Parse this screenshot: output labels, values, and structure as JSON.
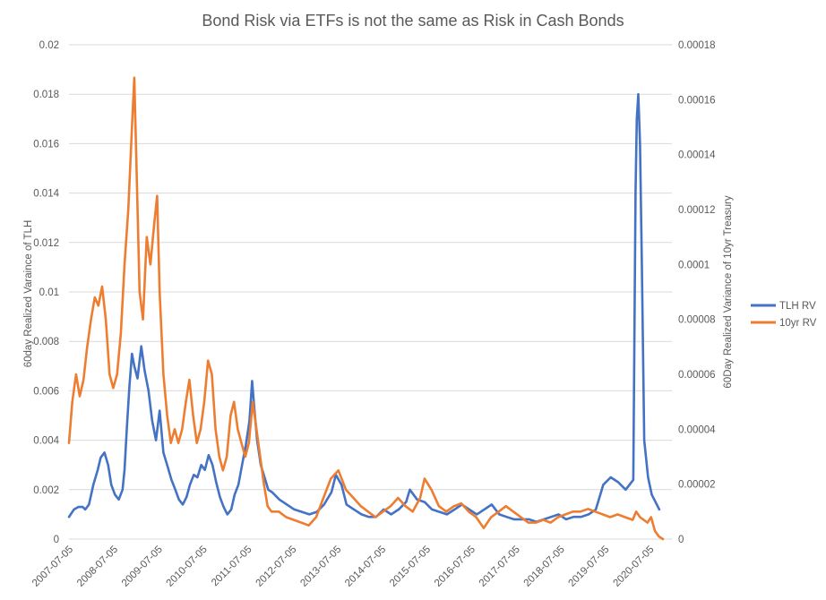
{
  "chart_data": {
    "type": "line",
    "title": "Bond Risk via ETFs is not the same as Risk in Cash Bonds",
    "xlabel": "",
    "y_left_label": "60day Realized Varaince of TLH",
    "y_right_label": "60Day Realized Variance of 10yr Treasury",
    "y_left_ticks": [
      "0",
      "0.002",
      "0.004",
      "0.006",
      "0.008",
      "0.01",
      "0.012",
      "0.014",
      "0.016",
      "0.018",
      "0.02"
    ],
    "y_right_ticks": [
      "0",
      "0.00002",
      "0.00004",
      "0.00006",
      "0.00008",
      "0.0001",
      "0.00012",
      "0.00014",
      "0.00016",
      "0.00018"
    ],
    "y_left_lim": [
      0,
      0.02
    ],
    "y_right_lim": [
      0,
      0.00018
    ],
    "x_ticks": [
      "2007-07-05",
      "2008-07-05",
      "2009-07-05",
      "2010-07-05",
      "2011-07-05",
      "2012-07-05",
      "2013-07-05",
      "2014-07-05",
      "2015-07-05",
      "2016-07-05",
      "2017-07-05",
      "2018-07-05",
      "2019-07-05",
      "2020-07-05"
    ],
    "x_lim": [
      "2007-07-05",
      "2021-01-01"
    ],
    "grid": true,
    "legend_position": "right",
    "series": [
      {
        "name": "TLH RV",
        "axis": "left",
        "color": "#4472c4",
        "x": [
          "2007-07-05",
          "2007-08-15",
          "2007-09-20",
          "2007-10-25",
          "2007-11-15",
          "2007-12-15",
          "2008-01-20",
          "2008-02-25",
          "2008-03-20",
          "2008-04-20",
          "2008-05-20",
          "2008-06-15",
          "2008-07-15",
          "2008-08-15",
          "2008-09-15",
          "2008-10-01",
          "2008-10-20",
          "2008-11-10",
          "2008-12-01",
          "2008-12-20",
          "2009-01-15",
          "2009-02-15",
          "2009-03-15",
          "2009-04-15",
          "2009-05-15",
          "2009-06-15",
          "2009-07-15",
          "2009-08-15",
          "2009-09-15",
          "2009-10-20",
          "2009-11-20",
          "2009-12-20",
          "2010-01-20",
          "2010-02-20",
          "2010-03-20",
          "2010-04-20",
          "2010-05-20",
          "2010-06-20",
          "2010-07-20",
          "2010-08-20",
          "2010-09-20",
          "2010-10-20",
          "2010-11-20",
          "2010-12-20",
          "2011-01-20",
          "2011-02-20",
          "2011-03-20",
          "2011-04-20",
          "2011-05-20",
          "2011-06-20",
          "2011-07-20",
          "2011-08-10",
          "2011-08-25",
          "2011-09-20",
          "2011-10-20",
          "2011-11-20",
          "2011-12-20",
          "2012-01-20",
          "2012-03-20",
          "2012-05-20",
          "2012-07-20",
          "2012-09-20",
          "2012-11-20",
          "2013-01-20",
          "2013-03-20",
          "2013-05-20",
          "2013-06-25",
          "2013-08-10",
          "2013-09-20",
          "2013-11-20",
          "2014-01-20",
          "2014-03-20",
          "2014-05-20",
          "2014-07-20",
          "2014-09-20",
          "2014-11-20",
          "2015-01-20",
          "2015-02-20",
          "2015-04-20",
          "2015-06-20",
          "2015-08-20",
          "2015-10-20",
          "2015-12-20",
          "2016-02-20",
          "2016-04-20",
          "2016-06-20",
          "2016-08-20",
          "2016-10-20",
          "2016-12-20",
          "2017-02-20",
          "2017-04-20",
          "2017-06-20",
          "2017-08-20",
          "2017-10-20",
          "2017-12-20",
          "2018-02-20",
          "2018-04-20",
          "2018-06-20",
          "2018-08-20",
          "2018-10-20",
          "2018-12-20",
          "2019-02-20",
          "2019-04-20",
          "2019-06-20",
          "2019-08-20",
          "2019-10-20",
          "2019-12-20",
          "2020-02-20",
          "2020-03-10",
          "2020-03-20",
          "2020-04-01",
          "2020-04-15",
          "2020-05-01",
          "2020-05-20",
          "2020-06-20",
          "2020-07-20",
          "2020-08-20",
          "2020-09-20"
        ],
        "y": [
          0.0009,
          0.0012,
          0.0013,
          0.0013,
          0.0012,
          0.0014,
          0.0022,
          0.0028,
          0.0033,
          0.0035,
          0.003,
          0.0022,
          0.0018,
          0.0016,
          0.002,
          0.0028,
          0.0045,
          0.0062,
          0.0075,
          0.007,
          0.0065,
          0.0078,
          0.0068,
          0.006,
          0.0048,
          0.004,
          0.0052,
          0.0035,
          0.003,
          0.0024,
          0.002,
          0.0016,
          0.0014,
          0.0017,
          0.0022,
          0.0026,
          0.0025,
          0.003,
          0.0028,
          0.0034,
          0.003,
          0.0023,
          0.0017,
          0.0013,
          0.001,
          0.0012,
          0.0018,
          0.0022,
          0.003,
          0.0038,
          0.0048,
          0.0064,
          0.0055,
          0.004,
          0.003,
          0.0025,
          0.002,
          0.0019,
          0.0016,
          0.0014,
          0.0012,
          0.0011,
          0.001,
          0.0011,
          0.0014,
          0.0019,
          0.0026,
          0.0022,
          0.0014,
          0.0012,
          0.001,
          0.0009,
          0.0009,
          0.0012,
          0.001,
          0.0012,
          0.0015,
          0.002,
          0.0016,
          0.0015,
          0.0012,
          0.0011,
          0.001,
          0.0012,
          0.0014,
          0.0012,
          0.001,
          0.0012,
          0.0014,
          0.001,
          0.0009,
          0.0008,
          0.0008,
          0.0008,
          0.0007,
          0.0008,
          0.0009,
          0.001,
          0.0008,
          0.0009,
          0.0009,
          0.001,
          0.0012,
          0.0022,
          0.0025,
          0.0023,
          0.002,
          0.0024,
          0.014,
          0.017,
          0.018,
          0.016,
          0.011,
          0.004,
          0.0025,
          0.0018,
          0.0015,
          0.0012
        ]
      },
      {
        "name": "10yr RV",
        "axis": "right",
        "color": "#ed7d31",
        "x": [
          "2007-07-05",
          "2007-08-01",
          "2007-09-01",
          "2007-10-01",
          "2007-11-01",
          "2007-12-01",
          "2008-01-01",
          "2008-02-01",
          "2008-03-01",
          "2008-04-01",
          "2008-05-01",
          "2008-06-01",
          "2008-07-01",
          "2008-08-01",
          "2008-09-01",
          "2008-10-01",
          "2008-11-01",
          "2008-12-01",
          "2008-12-20",
          "2009-01-10",
          "2009-02-01",
          "2009-03-01",
          "2009-04-01",
          "2009-05-01",
          "2009-06-01",
          "2009-06-25",
          "2009-07-15",
          "2009-08-15",
          "2009-09-15",
          "2009-10-15",
          "2009-11-15",
          "2009-12-15",
          "2010-01-15",
          "2010-02-15",
          "2010-03-15",
          "2010-04-15",
          "2010-05-15",
          "2010-06-15",
          "2010-07-15",
          "2010-08-15",
          "2010-09-15",
          "2010-10-15",
          "2010-11-15",
          "2010-12-15",
          "2011-01-15",
          "2011-02-15",
          "2011-03-15",
          "2011-04-15",
          "2011-05-15",
          "2011-06-15",
          "2011-07-15",
          "2011-08-15",
          "2011-09-15",
          "2011-10-15",
          "2011-11-15",
          "2011-12-15",
          "2012-01-15",
          "2012-03-15",
          "2012-05-15",
          "2012-07-15",
          "2012-09-15",
          "2012-11-15",
          "2013-01-15",
          "2013-03-15",
          "2013-05-15",
          "2013-07-15",
          "2013-09-15",
          "2013-11-15",
          "2014-01-15",
          "2014-03-15",
          "2014-05-15",
          "2014-07-15",
          "2014-09-15",
          "2014-11-15",
          "2015-01-15",
          "2015-03-15",
          "2015-05-15",
          "2015-06-20",
          "2015-08-15",
          "2015-10-15",
          "2015-12-15",
          "2016-02-15",
          "2016-04-15",
          "2016-06-15",
          "2016-08-15",
          "2016-10-15",
          "2016-12-15",
          "2017-02-15",
          "2017-04-15",
          "2017-06-15",
          "2017-08-15",
          "2017-10-15",
          "2017-12-15",
          "2018-02-15",
          "2018-04-15",
          "2018-06-15",
          "2018-08-15",
          "2018-10-15",
          "2018-12-15",
          "2019-02-15",
          "2019-04-15",
          "2019-06-15",
          "2019-08-15",
          "2019-10-15",
          "2019-12-15",
          "2020-02-15",
          "2020-03-15",
          "2020-04-15",
          "2020-05-15",
          "2020-06-15",
          "2020-07-15",
          "2020-08-15",
          "2020-09-15",
          "2020-10-20"
        ],
        "y": [
          3.5e-05,
          5e-05,
          6e-05,
          5.2e-05,
          5.8e-05,
          7e-05,
          8e-05,
          8.8e-05,
          8.5e-05,
          9.2e-05,
          8e-05,
          6e-05,
          5.5e-05,
          6e-05,
          7.5e-05,
          0.0001,
          0.00012,
          0.00015,
          0.000168,
          0.00013,
          9e-05,
          8e-05,
          0.00011,
          0.0001,
          0.000115,
          0.000125,
          9e-05,
          6e-05,
          4.5e-05,
          3.5e-05,
          4e-05,
          3.5e-05,
          4e-05,
          5e-05,
          5.8e-05,
          4.5e-05,
          3.5e-05,
          4e-05,
          5e-05,
          6.5e-05,
          6e-05,
          4e-05,
          3e-05,
          2.5e-05,
          3e-05,
          4.5e-05,
          5e-05,
          4e-05,
          3.5e-05,
          3e-05,
          3.5e-05,
          5e-05,
          4e-05,
          3e-05,
          2e-05,
          1.2e-05,
          1e-05,
          1e-05,
          8e-06,
          7e-06,
          6e-06,
          5e-06,
          8e-06,
          1.5e-05,
          2.2e-05,
          2.5e-05,
          1.8e-05,
          1.5e-05,
          1.2e-05,
          1e-05,
          8e-06,
          1e-05,
          1.2e-05,
          1.5e-05,
          1.2e-05,
          1e-05,
          1.5e-05,
          2.2e-05,
          1.8e-05,
          1.2e-05,
          1e-05,
          1.2e-05,
          1.3e-05,
          1e-05,
          8e-06,
          4e-06,
          8e-06,
          1e-05,
          1.2e-05,
          1e-05,
          8e-06,
          6e-06,
          6e-06,
          7e-06,
          6e-06,
          8e-06,
          9e-06,
          1e-05,
          1e-05,
          1.1e-05,
          1e-05,
          9e-06,
          8e-06,
          9e-06,
          8e-06,
          7e-06,
          1e-05,
          8e-06,
          7e-06,
          6e-06,
          8e-06,
          3e-06,
          1e-06,
          0.0
        ]
      }
    ]
  }
}
